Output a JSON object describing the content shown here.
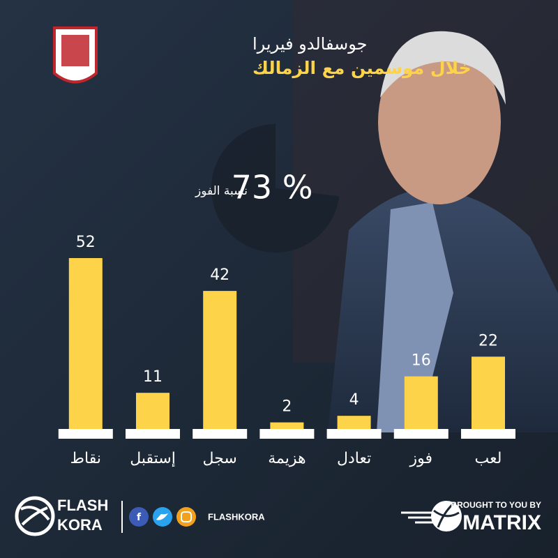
{
  "chart_data": {
    "type": "bar",
    "title": "جوسفالدو فيريرا",
    "subtitle": "خلال موسمين مع الزمالك",
    "win_rate": {
      "value": 73,
      "label": "73 %"
    },
    "win_rate_label": "نسبة الفوز",
    "categories": [
      "لعب",
      "فوز",
      "تعادل",
      "هزيمة",
      "سجل",
      "إستقبل",
      "نقاط"
    ],
    "values": [
      22,
      16,
      4,
      2,
      42,
      11,
      52
    ],
    "color": "#fdd34a"
  },
  "footer": {
    "brand_top": "FLASH",
    "brand_bottom": "KORA",
    "handle": "FLASHKORA",
    "sponsor_caption": "BROUGHT TO YOU BY",
    "sponsor": "MATRIX"
  }
}
